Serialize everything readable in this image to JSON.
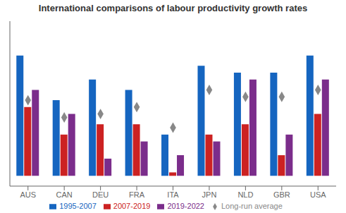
{
  "chart_data": {
    "type": "bar",
    "title": "International comparisons of labour productivity growth rates",
    "categories": [
      "AUS",
      "CAN",
      "DEU",
      "FRA",
      "ITA",
      "JPN",
      "NLD",
      "GBR",
      "USA"
    ],
    "series": [
      {
        "name": "1995-2007",
        "color": "#1565c0",
        "values": [
          3.5,
          2.2,
          2.8,
          2.5,
          1.2,
          3.2,
          3.0,
          3.0,
          3.5
        ]
      },
      {
        "name": "2007-2019",
        "color": "#cc2222",
        "values": [
          2.0,
          1.2,
          1.5,
          1.5,
          0.1,
          1.2,
          1.5,
          0.6,
          1.8
        ]
      },
      {
        "name": "2019-2022",
        "color": "#7b2d8b",
        "values": [
          2.5,
          1.8,
          0.5,
          1.0,
          0.6,
          1.0,
          2.8,
          1.2,
          2.8
        ]
      },
      {
        "name": "Long-run average",
        "type": "scatter",
        "marker": "diamond",
        "color": "#888888",
        "values": [
          2.2,
          1.7,
          1.8,
          2.0,
          1.4,
          2.5,
          2.3,
          2.3,
          2.5
        ]
      }
    ],
    "ylim": [
      -0.3,
      4.5
    ],
    "yticks": [],
    "tick_labels": "x",
    "legend": "bottom"
  }
}
